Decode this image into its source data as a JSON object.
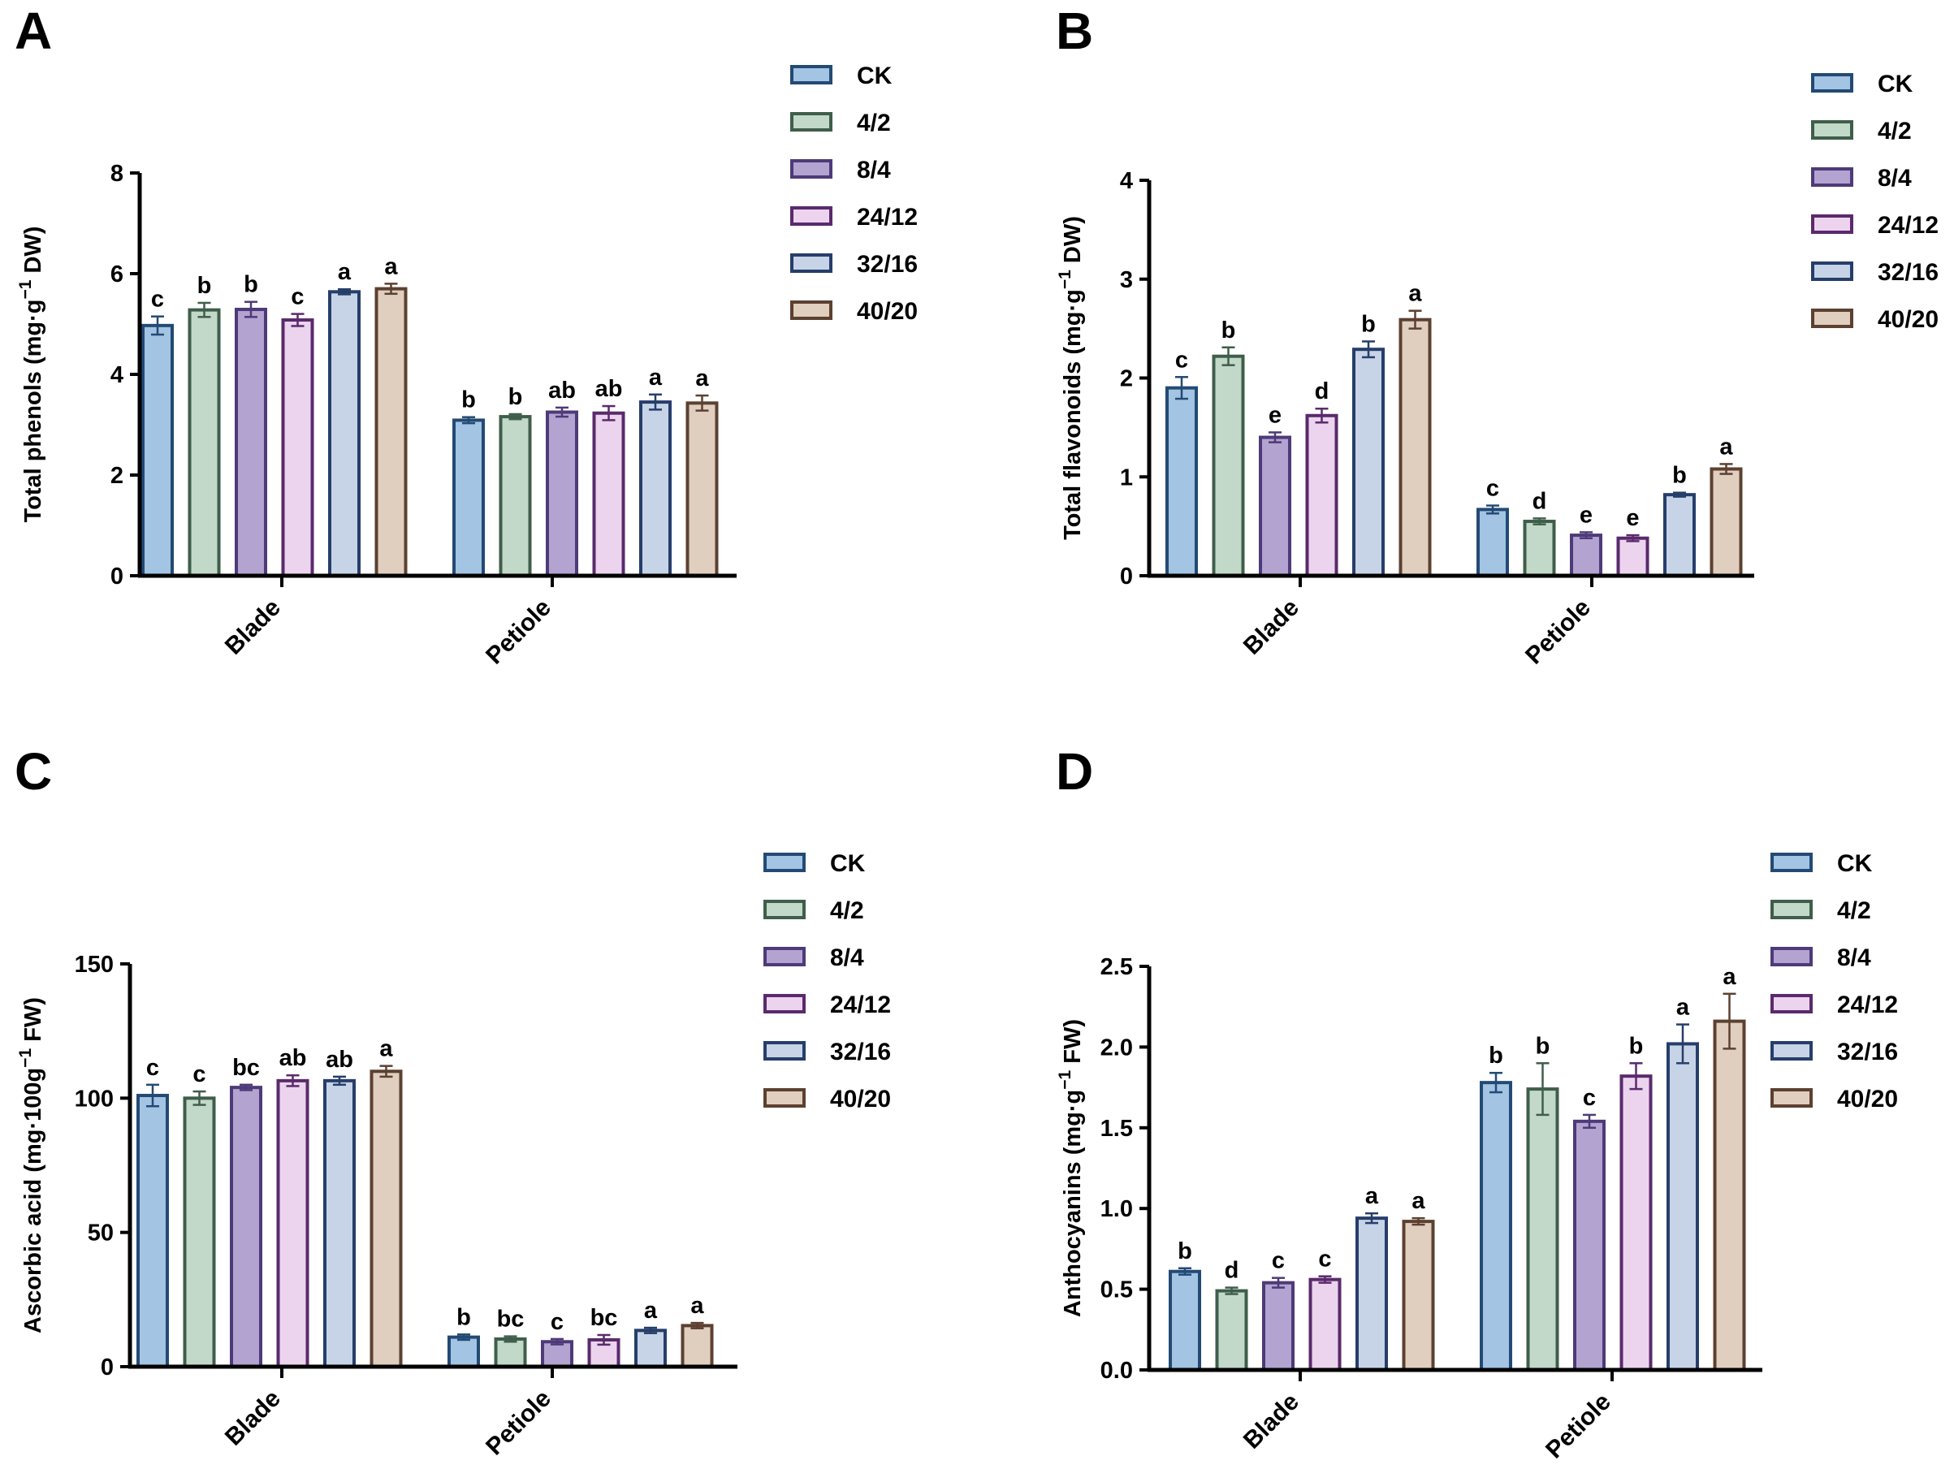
{
  "series_names": [
    "CK",
    "4/2",
    "8/4",
    "24/12",
    "32/16",
    "40/20"
  ],
  "colors": {
    "fill": [
      "#a3c4e3",
      "#c2d9c9",
      "#b3a3d1",
      "#ecd4ee",
      "#c7d4e8",
      "#e0cfbf"
    ],
    "stroke": [
      "#234a74",
      "#3f5e4a",
      "#4e3a78",
      "#5a2a6c",
      "#263e6a",
      "#5c4030"
    ],
    "axis": "#000000"
  },
  "chart_data": [
    {
      "panel": "A",
      "type": "bar",
      "categories": [
        "Blade",
        "Petiole"
      ],
      "ylabel": "Total phenols (mg·g−1 DW)",
      "ylabel_parts": [
        "Total phenols (mg·g",
        "−1",
        " DW)"
      ],
      "ylim": [
        0,
        8
      ],
      "yticks": [
        0,
        2,
        4,
        6,
        8
      ],
      "ytick_labels": [
        "0",
        "2",
        "4",
        "6",
        "8"
      ],
      "series": [
        {
          "name": "CK",
          "values": [
            4.97,
            3.09
          ],
          "errors": [
            0.18,
            0.06
          ],
          "letters": [
            "c",
            "b"
          ]
        },
        {
          "name": "4/2",
          "values": [
            5.28,
            3.16
          ],
          "errors": [
            0.14,
            0.05
          ],
          "letters": [
            "b",
            "b"
          ]
        },
        {
          "name": "8/4",
          "values": [
            5.29,
            3.25
          ],
          "errors": [
            0.15,
            0.09
          ],
          "letters": [
            "b",
            "ab"
          ]
        },
        {
          "name": "24/12",
          "values": [
            5.08,
            3.23
          ],
          "errors": [
            0.12,
            0.14
          ],
          "letters": [
            "c",
            "ab"
          ]
        },
        {
          "name": "32/16",
          "values": [
            5.64,
            3.45
          ],
          "errors": [
            0.05,
            0.15
          ],
          "letters": [
            "a",
            "a"
          ]
        },
        {
          "name": "40/20",
          "values": [
            5.7,
            3.43
          ],
          "errors": [
            0.1,
            0.15
          ],
          "letters": [
            "a",
            "a"
          ]
        }
      ]
    },
    {
      "panel": "B",
      "type": "bar",
      "categories": [
        "Blade",
        "Petiole"
      ],
      "ylabel": "Total flavonoids (mg·g−1 DW)",
      "ylabel_parts": [
        "Total flavonoids (mg·g",
        "−1",
        " DW)"
      ],
      "ylim": [
        0,
        4
      ],
      "yticks": [
        0,
        1,
        2,
        3,
        4
      ],
      "ytick_labels": [
        "0",
        "1",
        "2",
        "3",
        "4"
      ],
      "series": [
        {
          "name": "CK",
          "values": [
            1.9,
            0.67
          ],
          "errors": [
            0.11,
            0.04
          ],
          "letters": [
            "c",
            "c"
          ]
        },
        {
          "name": "4/2",
          "values": [
            2.22,
            0.55
          ],
          "errors": [
            0.09,
            0.03
          ],
          "letters": [
            "b",
            "d"
          ]
        },
        {
          "name": "8/4",
          "values": [
            1.4,
            0.41
          ],
          "errors": [
            0.05,
            0.03
          ],
          "letters": [
            "e",
            "e"
          ]
        },
        {
          "name": "24/12",
          "values": [
            1.62,
            0.38
          ],
          "errors": [
            0.07,
            0.03
          ],
          "letters": [
            "d",
            "e"
          ]
        },
        {
          "name": "32/16",
          "values": [
            2.29,
            0.82
          ],
          "errors": [
            0.08,
            0.02
          ],
          "letters": [
            "b",
            "b"
          ]
        },
        {
          "name": "40/20",
          "values": [
            2.59,
            1.08
          ],
          "errors": [
            0.09,
            0.05
          ],
          "letters": [
            "a",
            "a"
          ]
        }
      ]
    },
    {
      "panel": "C",
      "type": "bar",
      "categories": [
        "Blade",
        "Petiole"
      ],
      "ylabel": "Ascorbic acid (mg·100g−1 FW)",
      "ylabel_parts": [
        "Ascorbic acid (mg·100g",
        "−1",
        " FW)"
      ],
      "ylim": [
        0,
        150
      ],
      "yticks": [
        0,
        50,
        100,
        150
      ],
      "ytick_labels": [
        "0",
        "50",
        "100",
        "150"
      ],
      "series": [
        {
          "name": "CK",
          "values": [
            101.0,
            11.0
          ],
          "errors": [
            4.0,
            1.0
          ],
          "letters": [
            "c",
            "b"
          ]
        },
        {
          "name": "4/2",
          "values": [
            100.0,
            10.3
          ],
          "errors": [
            2.5,
            1.0
          ],
          "letters": [
            "c",
            "bc"
          ]
        },
        {
          "name": "8/4",
          "values": [
            104.0,
            9.3
          ],
          "errors": [
            1.0,
            1.0
          ],
          "letters": [
            "bc",
            "c"
          ]
        },
        {
          "name": "24/12",
          "values": [
            106.5,
            10.0
          ],
          "errors": [
            2.0,
            1.8
          ],
          "letters": [
            "ab",
            "bc"
          ]
        },
        {
          "name": "32/16",
          "values": [
            106.5,
            13.5
          ],
          "errors": [
            1.5,
            1.0
          ],
          "letters": [
            "ab",
            "a"
          ]
        },
        {
          "name": "40/20",
          "values": [
            110.0,
            15.3
          ],
          "errors": [
            2.0,
            1.0
          ],
          "letters": [
            "a",
            "a"
          ]
        }
      ]
    },
    {
      "panel": "D",
      "type": "bar",
      "categories": [
        "Blade",
        "Petiole"
      ],
      "ylabel": "Anthocyanins (mg·g−1 FW)",
      "ylabel_parts": [
        "Anthocyanins (mg·g",
        "−1",
        " FW)"
      ],
      "ylim": [
        0,
        2.5
      ],
      "yticks": [
        0,
        0.5,
        1.0,
        1.5,
        2.0,
        2.5
      ],
      "ytick_labels": [
        "0.0",
        "0.5",
        "1.0",
        "1.5",
        "2.0",
        "2.5"
      ],
      "series": [
        {
          "name": "CK",
          "values": [
            0.61,
            1.78
          ],
          "errors": [
            0.02,
            0.06
          ],
          "letters": [
            "b",
            "b"
          ]
        },
        {
          "name": "4/2",
          "values": [
            0.49,
            1.74
          ],
          "errors": [
            0.02,
            0.16
          ],
          "letters": [
            "d",
            "b"
          ]
        },
        {
          "name": "8/4",
          "values": [
            0.54,
            1.54
          ],
          "errors": [
            0.03,
            0.04
          ],
          "letters": [
            "c",
            "c"
          ]
        },
        {
          "name": "24/12",
          "values": [
            0.56,
            1.82
          ],
          "errors": [
            0.02,
            0.08
          ],
          "letters": [
            "c",
            "b"
          ]
        },
        {
          "name": "32/16",
          "values": [
            0.94,
            2.02
          ],
          "errors": [
            0.03,
            0.12
          ],
          "letters": [
            "a",
            "a"
          ]
        },
        {
          "name": "40/20",
          "values": [
            0.92,
            2.16
          ],
          "errors": [
            0.02,
            0.17
          ],
          "letters": [
            "a",
            "a"
          ]
        }
      ]
    }
  ]
}
